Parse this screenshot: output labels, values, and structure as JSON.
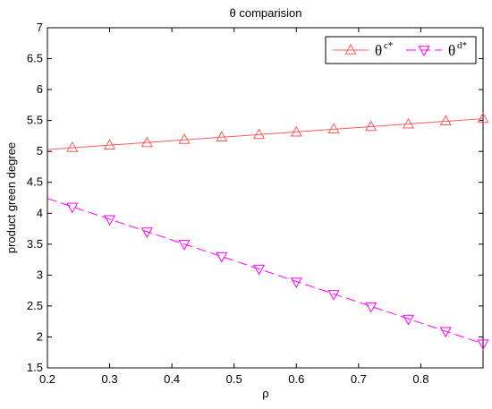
{
  "chart_data": {
    "type": "line",
    "title": "θ comparision",
    "xlabel": "ρ",
    "ylabel": "product green degree",
    "xlim": [
      0.2,
      0.9
    ],
    "ylim": [
      1.5,
      7
    ],
    "xticks": [
      0.2,
      0.3,
      0.4,
      0.5,
      0.6,
      0.7,
      0.8
    ],
    "xtick_labels": [
      "0.2",
      "0.3",
      "0.4",
      "0.5",
      "0.6",
      "0.7",
      "0.8"
    ],
    "yticks": [
      1.5,
      2,
      2.5,
      3,
      3.5,
      4,
      4.5,
      5,
      5.5,
      6,
      6.5,
      7
    ],
    "ytick_labels": [
      "1.5",
      "2",
      "2.5",
      "3",
      "3.5",
      "4",
      "4.5",
      "5",
      "5.5",
      "6",
      "6.5",
      "7"
    ],
    "grid": false,
    "legend_position": "top-right",
    "series": [
      {
        "name": "θ",
        "name_sup": "c*",
        "color": "#ff5a5a",
        "line_style": "solid",
        "marker": "triangle-up",
        "x": [
          0.2,
          0.9
        ],
        "y": [
          5.03,
          5.53
        ],
        "marker_x": [
          0.24,
          0.3,
          0.36,
          0.42,
          0.48,
          0.54,
          0.6,
          0.66,
          0.72,
          0.78,
          0.84,
          0.9
        ],
        "marker_y": [
          5.06,
          5.1,
          5.14,
          5.19,
          5.23,
          5.27,
          5.31,
          5.36,
          5.4,
          5.44,
          5.49,
          5.53
        ]
      },
      {
        "name": "θ",
        "name_sup": "d*",
        "color": "#ff00ff",
        "line_style": "dashed",
        "marker": "triangle-down",
        "x": [
          0.2,
          0.9
        ],
        "y": [
          4.24,
          1.89
        ],
        "marker_x": [
          0.24,
          0.3,
          0.36,
          0.42,
          0.48,
          0.54,
          0.6,
          0.66,
          0.72,
          0.78,
          0.84,
          0.9
        ],
        "marker_y": [
          4.1,
          3.9,
          3.7,
          3.5,
          3.3,
          3.1,
          2.89,
          2.69,
          2.49,
          2.29,
          2.09,
          1.89
        ]
      }
    ]
  }
}
